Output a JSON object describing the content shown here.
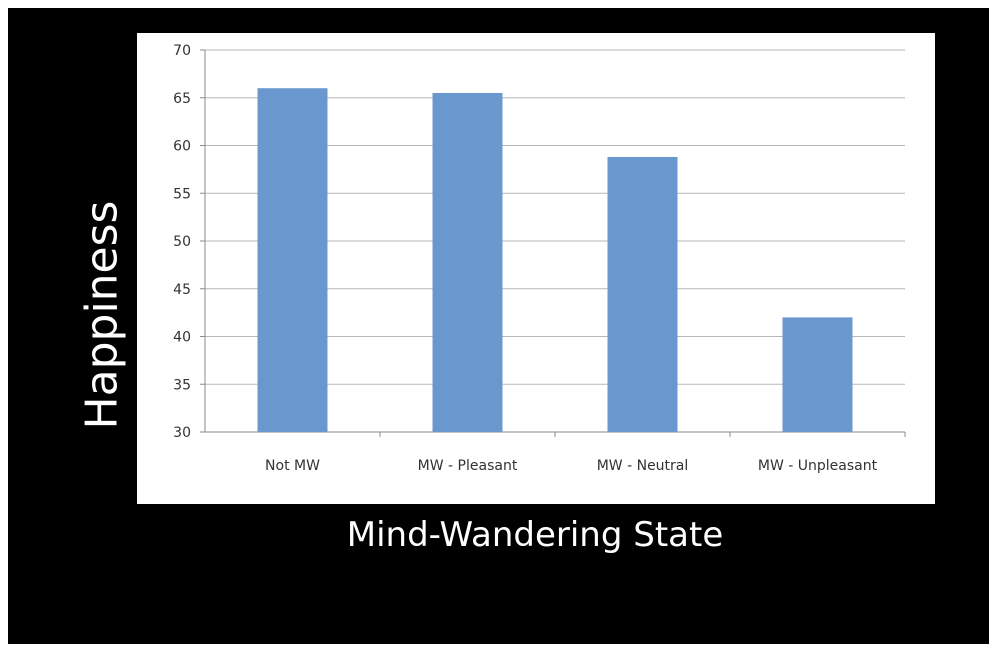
{
  "chart_data": {
    "type": "bar",
    "title": "",
    "xlabel": "Mind-Wandering State",
    "ylabel": "Happiness",
    "categories": [
      "Not MW",
      "MW - Pleasant",
      "MW - Neutral",
      "MW - Unpleasant"
    ],
    "values": [
      66,
      65.5,
      58.8,
      42
    ],
    "ylim": [
      30,
      70
    ],
    "yticks": [
      "30",
      "35",
      "40",
      "45",
      "50",
      "55",
      "60",
      "65",
      "70"
    ],
    "grid": true,
    "legend": "none",
    "colors": {
      "bar": "#6b97cf",
      "grid": "#b7b7b7",
      "axis": "#8a8a8a",
      "background": "#000000",
      "plot_background": "#ffffff"
    }
  }
}
